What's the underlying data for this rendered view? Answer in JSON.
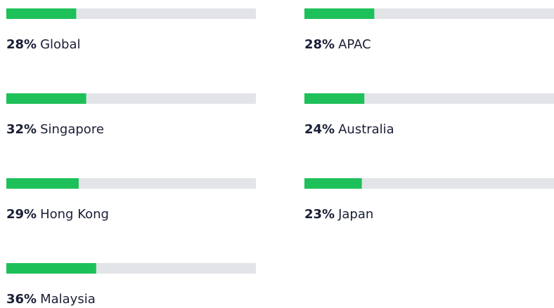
{
  "chart_data": {
    "type": "progress-bars",
    "categories": [
      "Global",
      "Singapore",
      "Hong Kong",
      "Malaysia",
      "APAC",
      "Australia",
      "Japan"
    ],
    "values": [
      28,
      32,
      29,
      36,
      28,
      24,
      23
    ],
    "value_labels": [
      "28%",
      "32%",
      "29%",
      "36%",
      "28%",
      "24%",
      "23%"
    ],
    "xlim": [
      0,
      100
    ],
    "color": "#1ec05a",
    "track_color": "#e2e4e8"
  }
}
